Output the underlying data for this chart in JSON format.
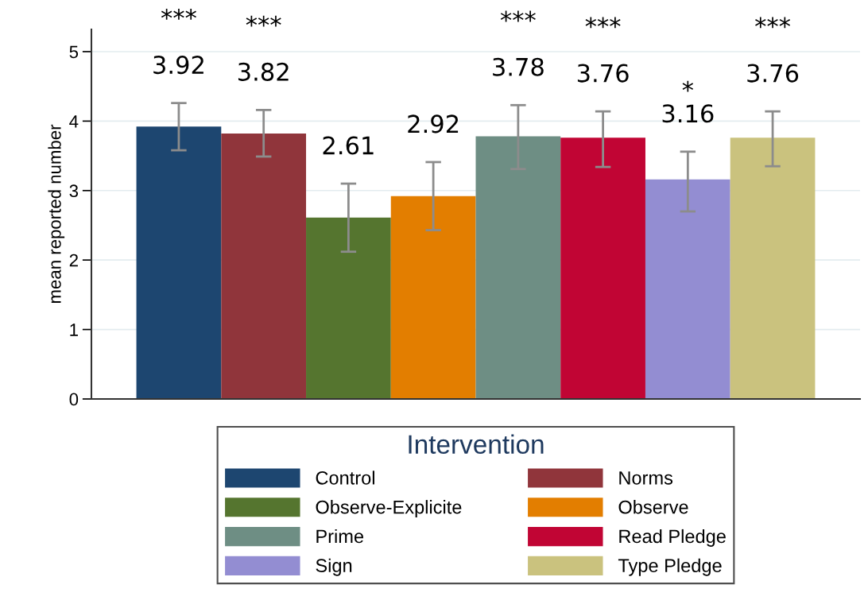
{
  "chart_data": {
    "type": "bar",
    "ylabel": "mean reported number",
    "legend_title": "Intervention",
    "categories": [
      null
    ],
    "series": [
      {
        "name": "Control",
        "color": "#1d4670",
        "values": [
          3.92
        ],
        "errors": [
          [
            3.58,
            4.26
          ]
        ],
        "value_labels": [
          "***\n\n3.92"
        ]
      },
      {
        "name": "Norms",
        "color": "#90353b",
        "values": [
          3.82
        ],
        "errors": [
          [
            3.49,
            4.16
          ]
        ],
        "value_labels": [
          "***\n\n3.82"
        ]
      },
      {
        "name": "Observe-Explicite",
        "color": "#55752f",
        "values": [
          2.61
        ],
        "errors": [
          [
            2.12,
            3.1
          ]
        ],
        "value_labels": [
          "2.61"
        ]
      },
      {
        "name": "Observe",
        "color": "#e37e00",
        "values": [
          2.92
        ],
        "errors": [
          [
            2.43,
            3.41
          ]
        ],
        "value_labels": [
          "2.92"
        ]
      },
      {
        "name": "Prime",
        "color": "#6e8e84",
        "values": [
          3.78
        ],
        "errors": [
          [
            3.31,
            4.23
          ]
        ],
        "value_labels": [
          "***\n\n3.78"
        ]
      },
      {
        "name": "Read Pledge",
        "color": "#c10534",
        "values": [
          3.76
        ],
        "errors": [
          [
            3.34,
            4.14
          ]
        ],
        "value_labels": [
          "***\n\n3.76"
        ]
      },
      {
        "name": "Sign",
        "color": "#938dd2",
        "values": [
          3.16
        ],
        "errors": [
          [
            2.7,
            3.56
          ]
        ],
        "value_labels": [
          "*\n3.16"
        ]
      },
      {
        "name": "Type Pledge",
        "color": "#cac27e",
        "values": [
          3.76
        ],
        "errors": [
          [
            3.35,
            4.14
          ]
        ],
        "value_labels": [
          "***\n\n3.76"
        ]
      }
    ],
    "ylim": [
      0,
      5.32
    ],
    "yticks": [
      0,
      1,
      2,
      3,
      4,
      5
    ],
    "grid": "y",
    "legend": "bottom",
    "tick_labels": "y"
  }
}
